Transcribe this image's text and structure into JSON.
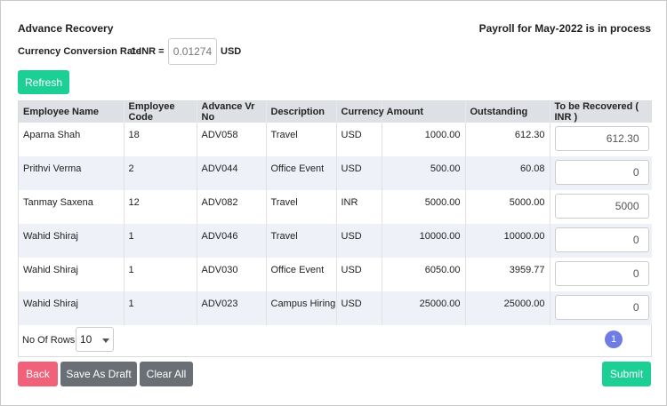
{
  "header": {
    "title": "Advance Recovery",
    "status": "Payroll for May-2022 is in process"
  },
  "conversion": {
    "label": "Currency Conversion Rate",
    "prefix": "1 INR =",
    "value": "0.01274",
    "suffix": "USD"
  },
  "buttons": {
    "refresh": "Refresh",
    "back": "Back",
    "save_draft": "Save As Draft",
    "clear_all": "Clear All",
    "submit": "Submit"
  },
  "table": {
    "headers": [
      "Employee Name",
      "Employee Code",
      "Advance Vr No",
      "Description",
      "Currency",
      "Amount",
      "Outstanding",
      "To be Recovered ( INR )"
    ],
    "rows": [
      {
        "name": "Aparna Shah",
        "code": "18",
        "vr": "ADV058",
        "desc": "Travel",
        "currency": "USD",
        "amount": "1000.00",
        "outstanding": "612.30",
        "recover": "612.30"
      },
      {
        "name": "Prithvi Verma",
        "code": "2",
        "vr": "ADV044",
        "desc": "Office Event",
        "currency": "USD",
        "amount": "500.00",
        "outstanding": "60.08",
        "recover": "0"
      },
      {
        "name": "Tanmay Saxena",
        "code": "12",
        "vr": "ADV082",
        "desc": "Travel",
        "currency": "INR",
        "amount": "5000.00",
        "outstanding": "5000.00",
        "recover": "5000"
      },
      {
        "name": "Wahid Shiraj",
        "code": "1",
        "vr": "ADV046",
        "desc": "Travel",
        "currency": "USD",
        "amount": "10000.00",
        "outstanding": "10000.00",
        "recover": "0"
      },
      {
        "name": "Wahid Shiraj",
        "code": "1",
        "vr": "ADV030",
        "desc": "Office Event",
        "currency": "USD",
        "amount": "6050.00",
        "outstanding": "3959.77",
        "recover": "0"
      },
      {
        "name": "Wahid Shiraj",
        "code": "1",
        "vr": "ADV023",
        "desc": "Campus Hiring",
        "currency": "USD",
        "amount": "25000.00",
        "outstanding": "25000.00",
        "recover": "0"
      }
    ]
  },
  "pagination": {
    "rows_label": "No Of Rows :",
    "rows_value": "10",
    "current_page": "1"
  }
}
